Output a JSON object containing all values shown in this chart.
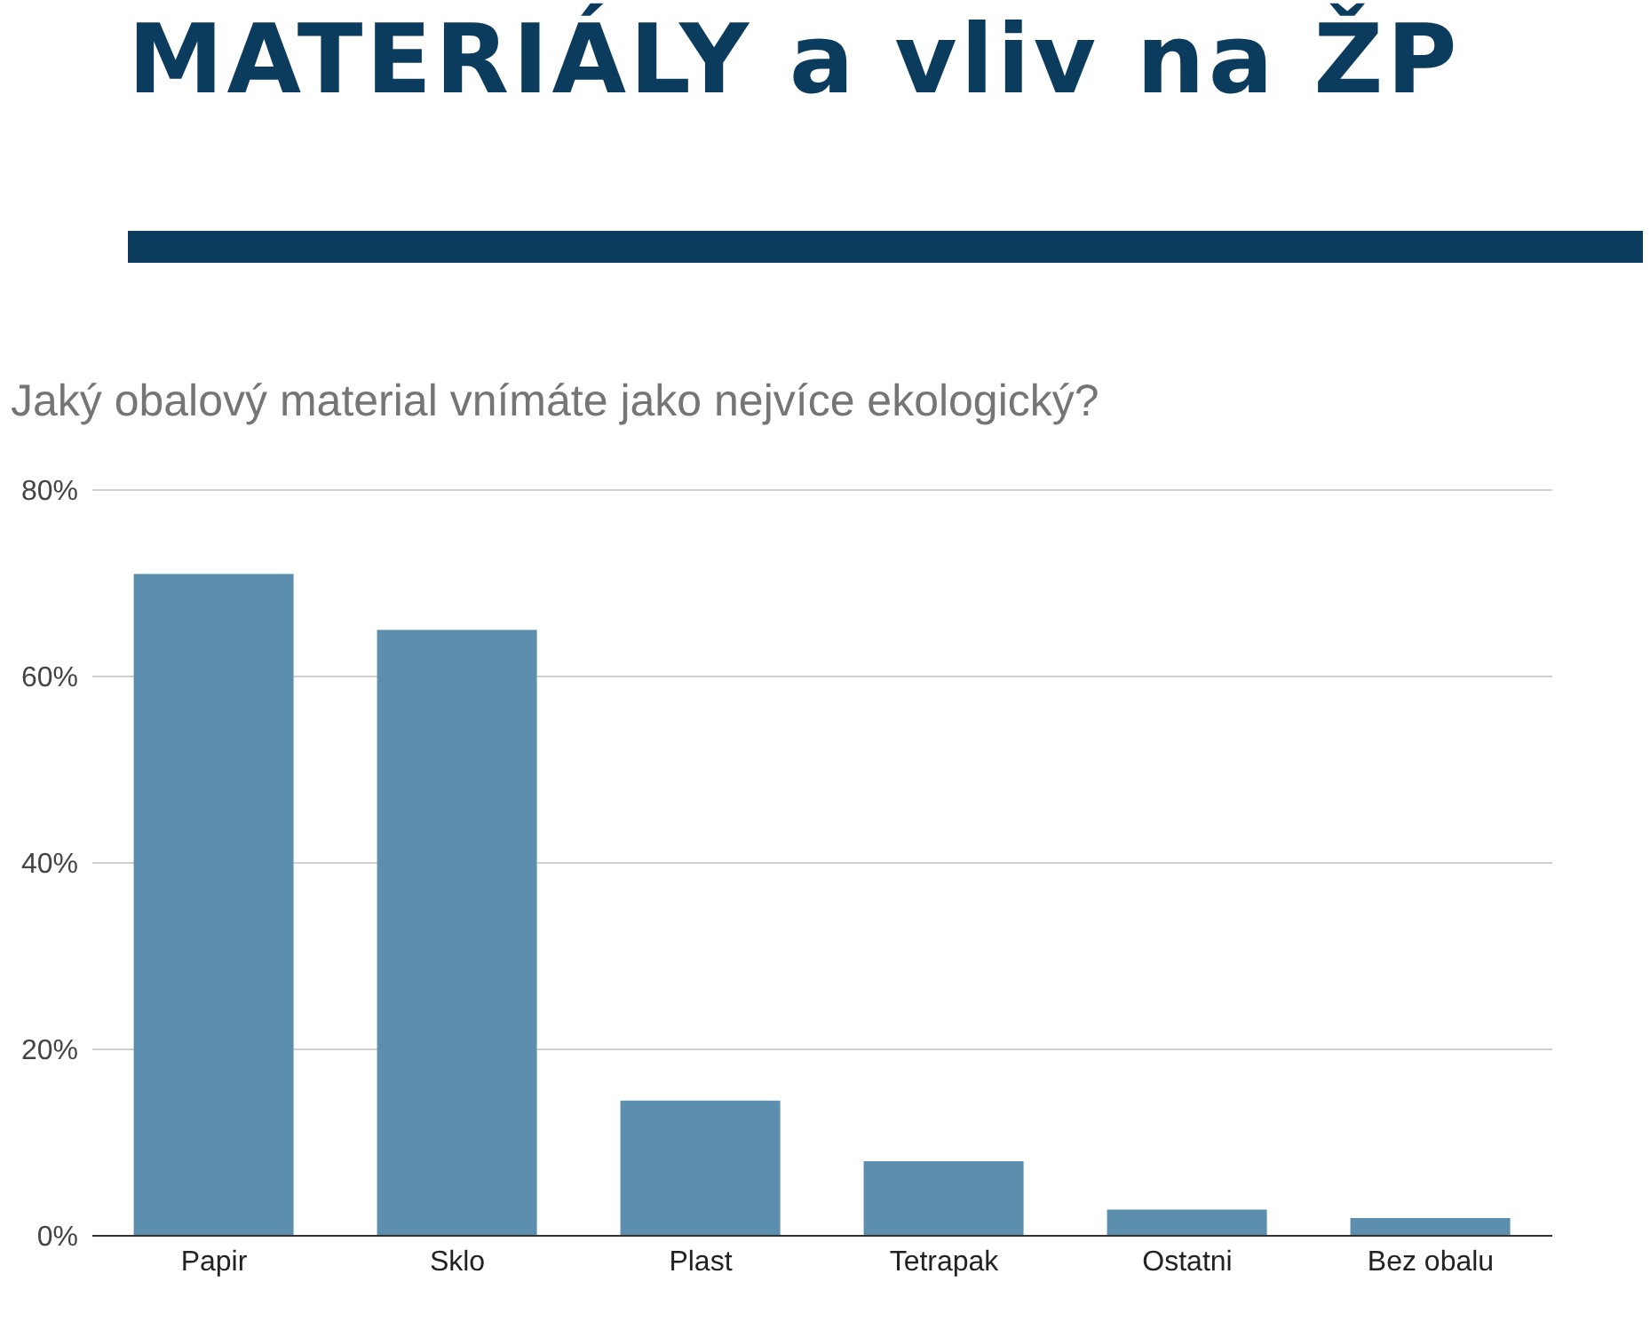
{
  "chart_data": {
    "type": "bar",
    "title": "MATERIÁLY a vliv na ŽP",
    "subtitle": "Jaký obalový material vnímáte jako nejvíce ekologický?",
    "categories": [
      "Papir",
      "Sklo",
      "Plast",
      "Tetrapak",
      "Ostatni",
      "Bez obalu"
    ],
    "values": [
      71,
      65,
      14.5,
      8,
      2.8,
      1.9
    ],
    "color": "#5b8fad",
    "ylim": [
      0,
      80
    ],
    "yticks": [
      {
        "value": 0,
        "label": "0%"
      },
      {
        "value": 20,
        "label": "20%"
      },
      {
        "value": 40,
        "label": "40%"
      },
      {
        "value": 60,
        "label": "60%"
      },
      {
        "value": 80,
        "label": "80%"
      }
    ],
    "grid": "y"
  }
}
